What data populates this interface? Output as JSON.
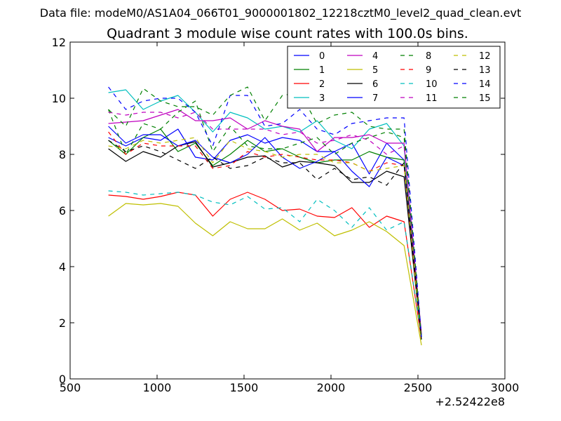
{
  "chart_data": {
    "type": "line",
    "suptitle": "Data file: modeM0/AS1A04_066T01_9000001802_12218cztM0_level2_quad_clean.evt",
    "title": "Quadrant 3 module wise count rates with 100.0s bins.",
    "xlabel": "",
    "ylabel": "",
    "xlim": [
      500,
      3000
    ],
    "ylim": [
      0,
      12
    ],
    "x_offset_label": "+2.52422e8",
    "x_ticks": [
      500,
      1000,
      1500,
      2000,
      2500,
      3000
    ],
    "y_ticks": [
      0,
      2,
      4,
      6,
      8,
      10,
      12
    ],
    "x_tick_labels": [
      "500",
      "1000",
      "1500",
      "2000",
      "2500",
      "3000"
    ],
    "y_tick_labels": [
      "0",
      "2",
      "4",
      "6",
      "8",
      "10",
      "12"
    ],
    "grid": false,
    "legend_placement": "top-right",
    "legend_columns": 4,
    "x": [
      720,
      820,
      920,
      1020,
      1120,
      1220,
      1320,
      1420,
      1520,
      1620,
      1720,
      1820,
      1920,
      2020,
      2120,
      2220,
      2320,
      2420,
      2520
    ],
    "series": [
      {
        "name": "0",
        "color": "#0000ff",
        "style": "solid",
        "values": [
          8.6,
          8.3,
          8.6,
          8.5,
          8.9,
          7.9,
          7.8,
          8.5,
          8.7,
          8.4,
          8.6,
          8.5,
          8.1,
          8.1,
          8.4,
          7.3,
          8.4,
          7.8,
          1.5
        ]
      },
      {
        "name": "1",
        "color": "#008000",
        "style": "solid",
        "values": [
          8.5,
          8.0,
          8.6,
          8.9,
          8.1,
          8.4,
          7.6,
          8.0,
          8.5,
          8.1,
          8.2,
          7.9,
          7.7,
          7.8,
          7.8,
          8.1,
          7.9,
          7.8,
          1.5
        ]
      },
      {
        "name": "2",
        "color": "#ff0000",
        "style": "solid",
        "values": [
          6.55,
          6.5,
          6.4,
          6.5,
          6.65,
          6.55,
          5.8,
          6.4,
          6.65,
          6.4,
          6.0,
          6.05,
          5.8,
          5.75,
          6.1,
          5.4,
          5.8,
          5.6,
          1.4
        ]
      },
      {
        "name": "3",
        "color": "#00bfbf",
        "style": "solid",
        "values": [
          10.2,
          10.3,
          9.6,
          9.9,
          10.1,
          9.5,
          8.8,
          9.5,
          9.3,
          8.9,
          9.0,
          8.8,
          9.2,
          8.5,
          8.2,
          8.9,
          9.1,
          8.3,
          1.5
        ]
      },
      {
        "name": "4",
        "color": "#bf00bf",
        "style": "solid",
        "values": [
          9.1,
          9.15,
          9.2,
          9.4,
          9.6,
          9.2,
          9.2,
          9.3,
          8.9,
          9.2,
          9.0,
          8.9,
          8.1,
          8.6,
          8.6,
          8.7,
          8.4,
          8.4,
          1.6
        ]
      },
      {
        "name": "5",
        "color": "#bfbf00",
        "style": "solid",
        "values": [
          5.8,
          6.25,
          6.2,
          6.25,
          6.15,
          5.55,
          5.1,
          5.6,
          5.35,
          5.35,
          5.7,
          5.3,
          5.55,
          5.1,
          5.3,
          5.6,
          5.25,
          4.75,
          1.2
        ]
      },
      {
        "name": "6",
        "color": "#000000",
        "style": "solid",
        "values": [
          8.2,
          7.75,
          8.1,
          7.9,
          8.3,
          8.45,
          7.55,
          7.7,
          7.9,
          7.95,
          7.55,
          7.75,
          7.7,
          7.6,
          7.0,
          7.0,
          7.4,
          7.2,
          1.4
        ]
      },
      {
        "name": "7",
        "color": "#0000ff",
        "style": "solid",
        "values": [
          9.0,
          8.4,
          8.7,
          8.7,
          8.3,
          8.5,
          7.9,
          7.7,
          8.0,
          8.6,
          7.9,
          7.5,
          7.75,
          8.1,
          7.4,
          6.85,
          7.9,
          7.6,
          1.5
        ]
      },
      {
        "name": "8",
        "color": "#008000",
        "style": "dashed",
        "values": [
          9.6,
          8.0,
          9.1,
          8.9,
          9.5,
          9.9,
          8.1,
          9.0,
          8.3,
          8.2,
          8.2,
          8.4,
          8.6,
          8.0,
          8.4,
          8.6,
          8.8,
          8.6,
          1.5
        ]
      },
      {
        "name": "9",
        "color": "#ff0000",
        "style": "dashed",
        "values": [
          8.8,
          8.0,
          8.4,
          8.3,
          8.3,
          8.3,
          7.5,
          7.6,
          8.1,
          7.9,
          8.0,
          7.9,
          7.8,
          7.8,
          7.7,
          7.4,
          7.7,
          7.6,
          1.5
        ]
      },
      {
        "name": "10",
        "color": "#00bfbf",
        "style": "dashed",
        "values": [
          6.7,
          6.65,
          6.55,
          6.6,
          6.65,
          6.55,
          6.3,
          6.2,
          6.5,
          6.05,
          6.1,
          5.6,
          6.4,
          6.0,
          5.4,
          6.1,
          5.3,
          5.6,
          1.5
        ]
      },
      {
        "name": "11",
        "color": "#bf00bf",
        "style": "dashed",
        "values": [
          9.5,
          9.4,
          9.5,
          9.5,
          9.3,
          9.5,
          8.9,
          8.9,
          8.9,
          8.9,
          8.7,
          8.8,
          8.4,
          8.5,
          8.7,
          8.5,
          8.0,
          8.3,
          1.6
        ]
      },
      {
        "name": "12",
        "color": "#bfbf00",
        "style": "dashed",
        "values": [
          8.3,
          8.2,
          8.5,
          8.4,
          8.5,
          8.6,
          7.7,
          8.5,
          8.2,
          8.1,
          7.9,
          8.0,
          8.0,
          7.7,
          7.7,
          7.4,
          7.5,
          7.6,
          1.4
        ]
      },
      {
        "name": "13",
        "color": "#000000",
        "style": "dashed",
        "values": [
          8.5,
          8.1,
          8.3,
          8.1,
          7.8,
          7.5,
          7.9,
          7.5,
          7.6,
          7.9,
          7.7,
          7.7,
          7.1,
          7.5,
          7.1,
          7.2,
          6.9,
          7.7,
          1.5
        ]
      },
      {
        "name": "14",
        "color": "#0000ff",
        "style": "dashed",
        "values": [
          10.4,
          9.6,
          9.9,
          10.0,
          10.0,
          9.5,
          8.3,
          10.1,
          10.1,
          9.0,
          9.1,
          9.6,
          8.9,
          8.7,
          9.1,
          9.2,
          9.3,
          9.3,
          1.5
        ]
      },
      {
        "name": "15",
        "color": "#008000",
        "style": "dashed",
        "values": [
          9.6,
          9.0,
          10.35,
          9.9,
          9.7,
          9.7,
          9.4,
          10.1,
          10.4,
          9.2,
          10.1,
          10.2,
          9.1,
          9.4,
          9.5,
          9.0,
          8.9,
          8.9,
          1.4
        ]
      }
    ]
  }
}
